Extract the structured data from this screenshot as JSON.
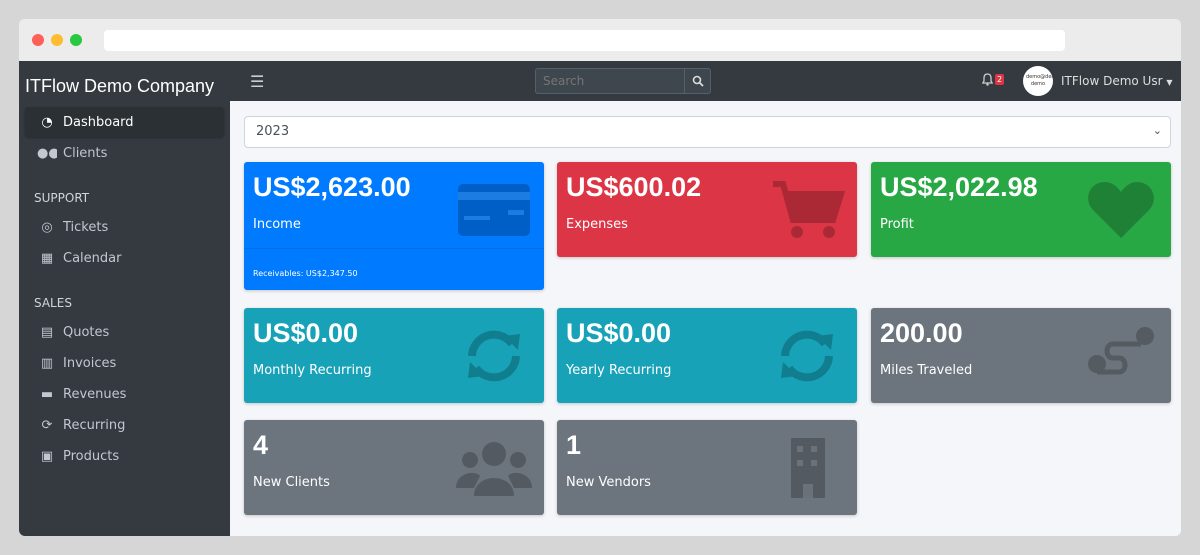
{
  "colors": {
    "income": "#007bff",
    "expenses": "#dc3545",
    "profit": "#28a745",
    "recurring": "#17a2b8",
    "gray": "#6c757d",
    "sidebar": "#343a40"
  },
  "sidebar": {
    "brand": "ITFlow Demo Company",
    "items": [
      {
        "label": "Dashboard",
        "icon": "tachometer-icon",
        "active": true
      },
      {
        "label": "Clients",
        "icon": "users-icon"
      }
    ],
    "support_header": "SUPPORT",
    "support": [
      {
        "label": "Tickets",
        "icon": "life-ring-icon"
      },
      {
        "label": "Calendar",
        "icon": "calendar-icon"
      }
    ],
    "sales_header": "SALES",
    "sales": [
      {
        "label": "Quotes",
        "icon": "file-icon"
      },
      {
        "label": "Invoices",
        "icon": "invoice-icon"
      },
      {
        "label": "Revenues",
        "icon": "credit-card-icon"
      },
      {
        "label": "Recurring",
        "icon": "sync-icon"
      },
      {
        "label": "Products",
        "icon": "box-icon"
      }
    ]
  },
  "topbar": {
    "search_placeholder": "Search",
    "notification_count": "2",
    "avatar_text": "demo@demo demo",
    "user_name": "ITFlow Demo Usr"
  },
  "year_select": "2023",
  "cards": [
    {
      "value": "US$2,623.00",
      "label": "Income",
      "footer": "Receivables: US$2,347.50",
      "icon": "credit-card-icon"
    },
    {
      "value": "US$600.02",
      "label": "Expenses",
      "icon": "cart-icon"
    },
    {
      "value": "US$2,022.98",
      "label": "Profit",
      "icon": "heart-icon"
    },
    {
      "value": "US$0.00",
      "label": "Monthly Recurring",
      "icon": "sync-icon"
    },
    {
      "value": "US$0.00",
      "label": "Yearly Recurring",
      "icon": "sync-icon"
    },
    {
      "value": "200.00",
      "label": "Miles Traveled",
      "icon": "route-icon"
    },
    {
      "value": "4",
      "label": "New Clients",
      "icon": "users-icon"
    },
    {
      "value": "1",
      "label": "New Vendors",
      "icon": "building-icon"
    }
  ]
}
